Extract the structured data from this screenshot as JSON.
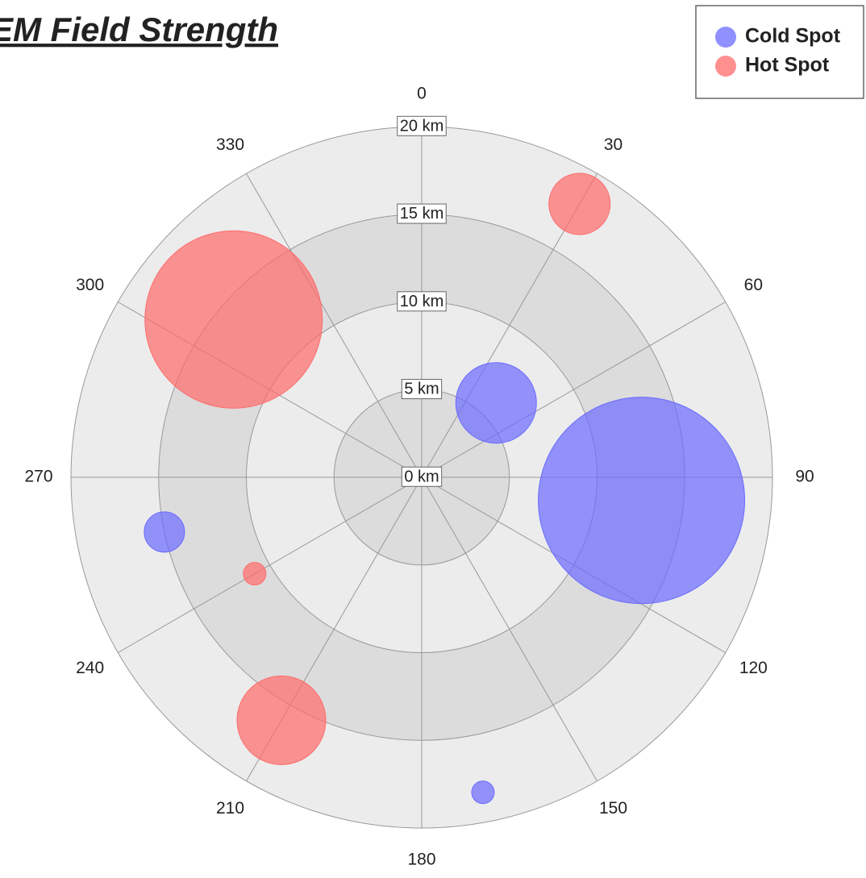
{
  "chart_data": {
    "type": "polar-bubble",
    "title": "EM Field Strength",
    "xlim": [
      0,
      360
    ],
    "xticks": [
      0,
      30,
      60,
      90,
      120,
      150,
      180,
      210,
      240,
      270,
      300,
      330
    ],
    "ylim": [
      0,
      20
    ],
    "yticks": [
      {
        "value": 0,
        "label": "0 km"
      },
      {
        "value": 5,
        "label": "5 km"
      },
      {
        "value": 10,
        "label": "10 km"
      },
      {
        "value": 15,
        "label": "15 km"
      },
      {
        "value": 20,
        "label": "20 km"
      }
    ],
    "grid": true,
    "legend": "top-right",
    "series": [
      {
        "name": "Cold Spot",
        "color": "#6b6bff",
        "theta": [
          45,
          96,
          258,
          169
        ],
        "values": [
          6,
          12.6,
          15,
          18.3
        ],
        "sizes": [
          5,
          12.8,
          2.5,
          1.4
        ]
      },
      {
        "name": "Hot Spot",
        "color": "#ff6b6b",
        "theta": [
          30,
          310,
          240,
          210
        ],
        "values": [
          18,
          14,
          11,
          16
        ],
        "sizes": [
          3.8,
          11,
          1.4,
          5.5
        ]
      }
    ]
  }
}
